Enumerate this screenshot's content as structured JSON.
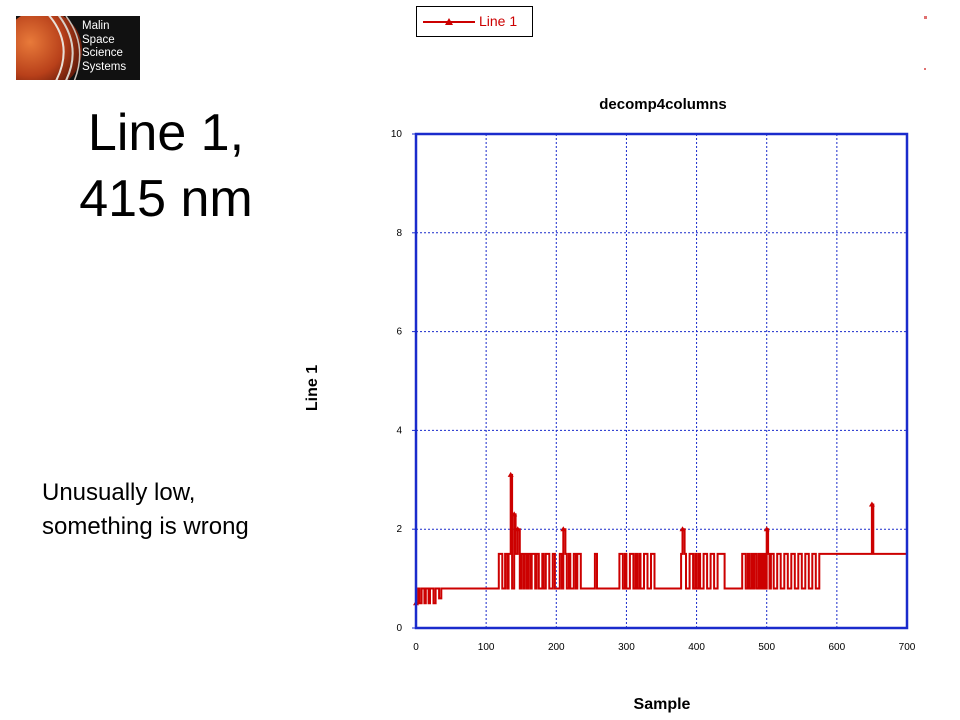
{
  "logo": {
    "lines": [
      "Malin",
      "Space",
      "Science",
      "Systems"
    ]
  },
  "slide": {
    "title_line1": "Line 1,",
    "title_line2": "415 nm",
    "note_line1": "Unusually low,",
    "note_line2": "something is wrong"
  },
  "colors": {
    "series": "#cc0000",
    "grid": "#1a2bcc",
    "axis": "#1a2bcc"
  },
  "chart_data": {
    "type": "line",
    "title": "decomp4columns",
    "xlabel": "Sample",
    "ylabel": "Line 1",
    "xlim": [
      0,
      700
    ],
    "ylim": [
      0,
      10
    ],
    "xticks": [
      0,
      100,
      200,
      300,
      400,
      500,
      600,
      700
    ],
    "yticks": [
      0,
      2,
      4,
      6,
      8,
      10
    ],
    "grid": true,
    "legend_position": "top",
    "series": [
      {
        "name": "Line 1",
        "x": [
          0,
          3,
          5,
          8,
          12,
          14,
          18,
          20,
          25,
          28,
          33,
          36,
          40,
          45,
          50,
          60,
          65,
          70,
          75,
          78,
          80,
          84,
          90,
          100,
          115,
          118,
          123,
          127,
          130,
          132,
          135,
          137,
          140,
          142,
          145,
          148,
          150,
          153,
          155,
          158,
          160,
          163,
          165,
          170,
          172,
          175,
          180,
          182,
          185,
          190,
          195,
          198,
          205,
          208,
          210,
          213,
          215,
          218,
          220,
          225,
          228,
          230,
          235,
          240,
          245,
          255,
          258,
          265,
          280,
          290,
          295,
          298,
          300,
          305,
          310,
          313,
          315,
          318,
          320,
          325,
          330,
          335,
          340,
          345,
          350,
          355,
          370,
          375,
          378,
          380,
          383,
          385,
          390,
          395,
          398,
          400,
          403,
          405,
          410,
          415,
          420,
          425,
          430,
          440,
          450,
          460,
          465,
          470,
          473,
          475,
          478,
          480,
          482,
          485,
          488,
          490,
          492,
          494,
          496,
          498,
          500,
          502,
          504,
          506,
          510,
          515,
          520,
          525,
          530,
          535,
          540,
          545,
          550,
          555,
          560,
          565,
          570,
          575,
          580,
          600,
          620,
          630,
          635,
          645,
          648,
          650,
          652,
          655,
          660,
          670,
          680,
          690,
          700
        ],
        "values": [
          0.5,
          0.8,
          0.5,
          0.8,
          0.5,
          0.8,
          0.5,
          0.8,
          0.5,
          0.8,
          0.6,
          0.8,
          0.8,
          0.8,
          0.8,
          0.8,
          0.8,
          0.8,
          0.8,
          0.8,
          0.8,
          0.8,
          0.8,
          0.8,
          0.8,
          1.5,
          0.8,
          1.5,
          0.8,
          1.5,
          3.1,
          0.8,
          2.3,
          1.5,
          2.0,
          0.8,
          1.5,
          0.8,
          1.5,
          0.8,
          1.5,
          0.8,
          1.5,
          0.8,
          1.5,
          0.8,
          1.5,
          0.8,
          1.5,
          0.8,
          1.5,
          0.8,
          1.5,
          0.8,
          2.0,
          1.5,
          0.8,
          1.5,
          0.8,
          1.5,
          0.8,
          1.5,
          0.8,
          0.8,
          0.8,
          1.5,
          0.8,
          0.8,
          0.8,
          1.5,
          0.8,
          1.5,
          0.8,
          1.5,
          0.8,
          1.5,
          0.8,
          1.5,
          0.8,
          1.5,
          0.8,
          1.5,
          0.8,
          0.8,
          0.8,
          0.8,
          0.8,
          0.8,
          1.5,
          2.0,
          1.5,
          0.8,
          1.5,
          0.8,
          1.5,
          0.8,
          1.5,
          0.8,
          1.5,
          0.8,
          1.5,
          0.8,
          1.5,
          0.8,
          0.8,
          0.8,
          1.5,
          0.8,
          1.5,
          0.8,
          1.5,
          0.8,
          1.5,
          0.8,
          1.5,
          0.8,
          1.5,
          0.8,
          1.5,
          0.8,
          2.0,
          1.5,
          0.8,
          1.5,
          0.8,
          1.5,
          0.8,
          1.5,
          0.8,
          1.5,
          0.8,
          1.5,
          0.8,
          1.5,
          0.8,
          1.5,
          0.8,
          1.5,
          1.5,
          1.5,
          1.5,
          1.5,
          1.5,
          1.5,
          1.5,
          2.5,
          1.5,
          1.5,
          1.5,
          1.5,
          1.5,
          1.5,
          1.5
        ]
      }
    ]
  }
}
